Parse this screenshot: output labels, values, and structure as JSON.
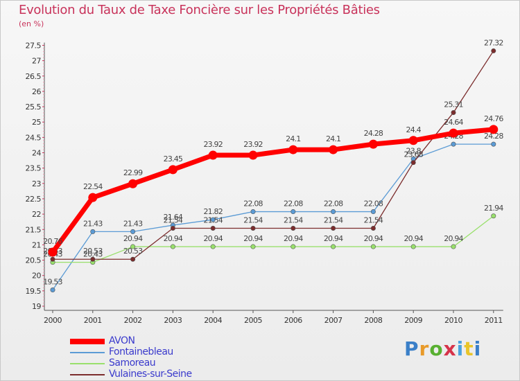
{
  "title": "Evolution du Taux de Taxe Foncière sur les Propriétés Bâties",
  "unit": "(en %)",
  "logo": {
    "text": "Proxiti",
    "letter_colors": [
      "#3a7fc8",
      "#e89a2a",
      "#58b031",
      "#d6334a",
      "#4aa3df",
      "#e8c52a",
      "#3a7fc8"
    ]
  },
  "chart_data": {
    "type": "line",
    "title": "Evolution du Taux de Taxe Foncière sur les Propriétés Bâties",
    "ylabel": "(en %)",
    "xlabel": "",
    "categories": [
      "2000",
      "2001",
      "2002",
      "2003",
      "2004",
      "2005",
      "2006",
      "2007",
      "2008",
      "2009",
      "2010",
      "2011"
    ],
    "ylim": [
      19,
      27.5
    ],
    "yticks": [
      "19",
      "19.5",
      "20",
      "20.5",
      "21",
      "21.5",
      "22",
      "22.5",
      "23",
      "23.5",
      "24",
      "24.5",
      "25",
      "25.5",
      "26",
      "26.5",
      "27",
      "27.5"
    ],
    "grid": false,
    "legend_position": "bottom-left",
    "series": [
      {
        "name": "AVON",
        "color": "#ff0000",
        "emphasis": true,
        "values": [
          20.76,
          22.54,
          22.99,
          23.45,
          23.92,
          23.92,
          24.1,
          24.1,
          24.28,
          24.4,
          24.64,
          24.76
        ],
        "labels": [
          "20.76",
          "22.54",
          "22.99",
          "23.45",
          "23.92",
          "23.92",
          "24.1",
          "24.1",
          "24.28",
          "24.4",
          "24.64",
          "24.76"
        ]
      },
      {
        "name": "Fontainebleau",
        "color": "#5b9bd5",
        "emphasis": false,
        "values": [
          19.53,
          21.43,
          21.43,
          21.64,
          21.82,
          22.08,
          22.08,
          22.08,
          22.08,
          23.8,
          24.28,
          24.28
        ],
        "labels": [
          "19.53",
          "21.43",
          "21.43",
          "21.64",
          "21.82",
          "22.08",
          "22.08",
          "22.08",
          "22.08",
          "23.8",
          "24.28",
          "24.28"
        ]
      },
      {
        "name": "Samoreau",
        "color": "#99e06c",
        "emphasis": false,
        "values": [
          20.43,
          20.43,
          20.94,
          20.94,
          20.94,
          20.94,
          20.94,
          20.94,
          20.94,
          20.94,
          20.94,
          21.94
        ],
        "labels": [
          "20.43",
          "20.43",
          "20.94",
          "20.94",
          "20.94",
          "20.94",
          "20.94",
          "20.94",
          "20.94",
          "20.94",
          "20.94",
          "21.94"
        ]
      },
      {
        "name": "Vulaines-sur-Seine",
        "color": "#7b2c2c",
        "emphasis": false,
        "values": [
          20.53,
          20.53,
          20.53,
          21.54,
          21.54,
          21.54,
          21.54,
          21.54,
          21.54,
          23.68,
          25.31,
          27.32
        ],
        "labels": [
          "20.53",
          "20.53",
          "20.53",
          "21.54",
          "21.54",
          "21.54",
          "21.54",
          "21.54",
          "21.54",
          "23.68",
          "25.31",
          "27.32"
        ]
      }
    ]
  }
}
